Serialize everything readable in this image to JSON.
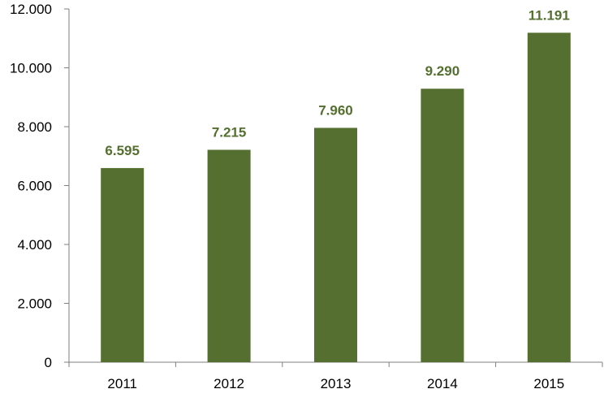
{
  "chart_data": {
    "type": "bar",
    "title": "",
    "xlabel": "",
    "ylabel": "",
    "categories": [
      "2011",
      "2012",
      "2013",
      "2014",
      "2015"
    ],
    "values": [
      6595,
      7215,
      7960,
      9290,
      11191
    ],
    "value_labels": [
      "6.595",
      "7.215",
      "7.960",
      "9.290",
      "11.191"
    ],
    "ylim": [
      0,
      12000
    ],
    "yticks": [
      0,
      2000,
      4000,
      6000,
      8000,
      10000,
      12000
    ],
    "ytick_labels": [
      "0",
      "2.000",
      "4.000",
      "6.000",
      "8.000",
      "10.000",
      "12.000"
    ],
    "grid": false,
    "legend": "none",
    "colors": {
      "bar": "#546f2f",
      "value_label": "#546f2f",
      "axis": "#7f7f7f",
      "tick_text": "#000000"
    }
  }
}
